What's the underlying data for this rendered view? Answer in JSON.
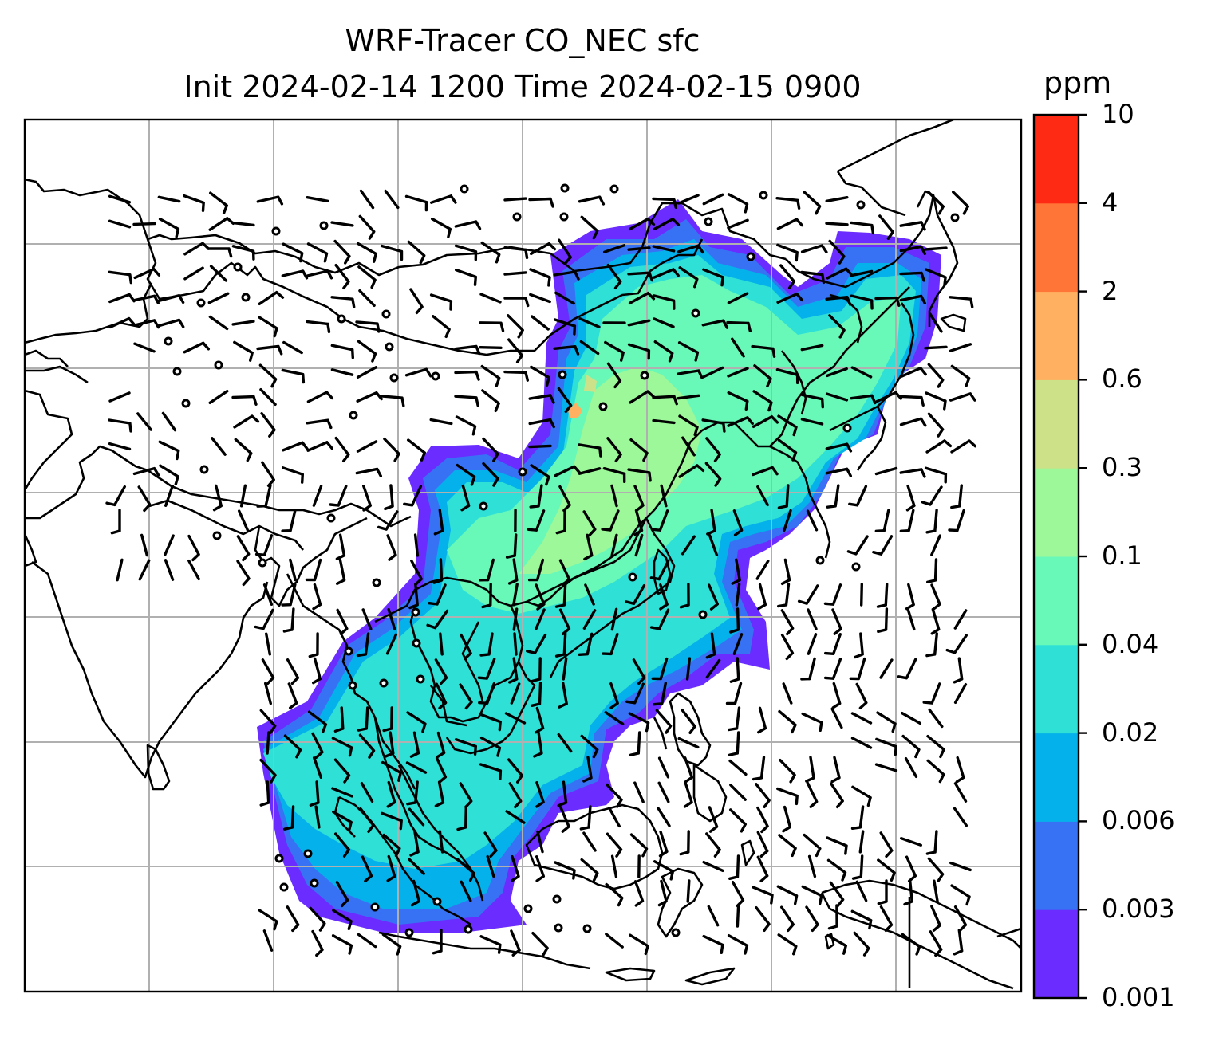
{
  "title_line1": "WRF-Tracer CO_NEC sfc",
  "title_line2": "Init 2024-02-14 1200 Time 2024-02-15 0900",
  "colorbar": {
    "unit": "ppm",
    "levels": [
      "0.001",
      "0.003",
      "0.006",
      "0.02",
      "0.04",
      "0.1",
      "0.3",
      "0.6",
      "2",
      "4",
      "10"
    ],
    "colors": [
      "#6a2cff",
      "#3772f5",
      "#05b1ea",
      "#2fe0d6",
      "#68f8b8",
      "#9cf898",
      "#cde288",
      "#ffb060",
      "#ff7538",
      "#ff2a14"
    ]
  },
  "map": {
    "projection_grid": "lat-lon graticule, light gray",
    "plume_colors": {
      "edge": "#6a2cff",
      "low": "#3772f5",
      "mid_low": "#05b1ea",
      "mid": "#2fe0d6",
      "mid_high": "#68f8b8",
      "high": "#9cf898",
      "peak": "#ffb060"
    },
    "coastline_color": "#000000",
    "wind_symbol": "wind barbs and calm circles"
  }
}
